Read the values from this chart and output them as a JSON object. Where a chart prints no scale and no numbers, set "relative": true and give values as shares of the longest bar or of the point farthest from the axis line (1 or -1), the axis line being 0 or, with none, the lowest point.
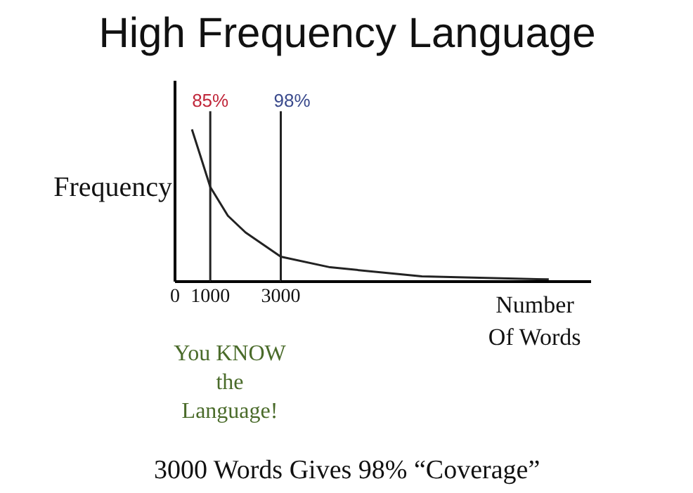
{
  "chart_data": {
    "type": "line",
    "title": "High Frequency Language",
    "ylabel": "Frequency",
    "xlabel": "Number Of Words",
    "relative": true,
    "x": [
      480,
      700,
      1000,
      1500,
      2000,
      3000,
      4400,
      7000,
      10600
    ],
    "series": [
      {
        "color": "#222222",
        "values": [
          1,
          0.84,
          0.62,
          0.43,
          0.32,
          0.16,
          0.09,
          0.03,
          0.01
        ]
      }
    ],
    "xlim": [
      0,
      11800
    ],
    "xticks": [
      0,
      1000,
      3000
    ],
    "ref_lines": [
      {
        "axis": "x",
        "value": 1000,
        "color": "#222222"
      },
      {
        "axis": "x",
        "value": 3000,
        "color": "#222222"
      }
    ],
    "annotations": [
      {
        "text": "85%",
        "x": 1000,
        "y": 1.12
      },
      {
        "text": "98%",
        "x": 3000,
        "y": 1.12
      },
      "You KNOW the Language!",
      "3000 Words Gives 98% “Coverage”"
    ],
    "grid": false,
    "marker": "none",
    "line_style": "solid"
  }
}
